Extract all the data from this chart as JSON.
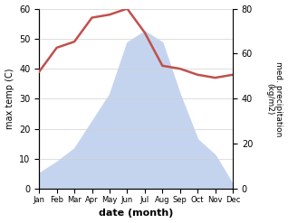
{
  "months": [
    "Jan",
    "Feb",
    "Mar",
    "Apr",
    "May",
    "Jun",
    "Jul",
    "Aug",
    "Sep",
    "Oct",
    "Nov",
    "Dec"
  ],
  "month_indices": [
    0,
    1,
    2,
    3,
    4,
    5,
    6,
    7,
    8,
    9,
    10,
    11
  ],
  "temperature": [
    39,
    47,
    49,
    57,
    58,
    60,
    52,
    41,
    40,
    38,
    37,
    38
  ],
  "precipitation": [
    7,
    12,
    18,
    30,
    42,
    65,
    70,
    65,
    42,
    22,
    15,
    2
  ],
  "temp_color": "#c0504d",
  "precip_color": "#c5d4ee",
  "ylabel_left": "max temp (C)",
  "ylabel_right": "med. precipitation\n(kg/m2)",
  "xlabel": "date (month)",
  "ylim_left": [
    0,
    60
  ],
  "ylim_right": [
    0,
    80
  ],
  "temp_linewidth": 1.8,
  "background_color": "#ffffff"
}
